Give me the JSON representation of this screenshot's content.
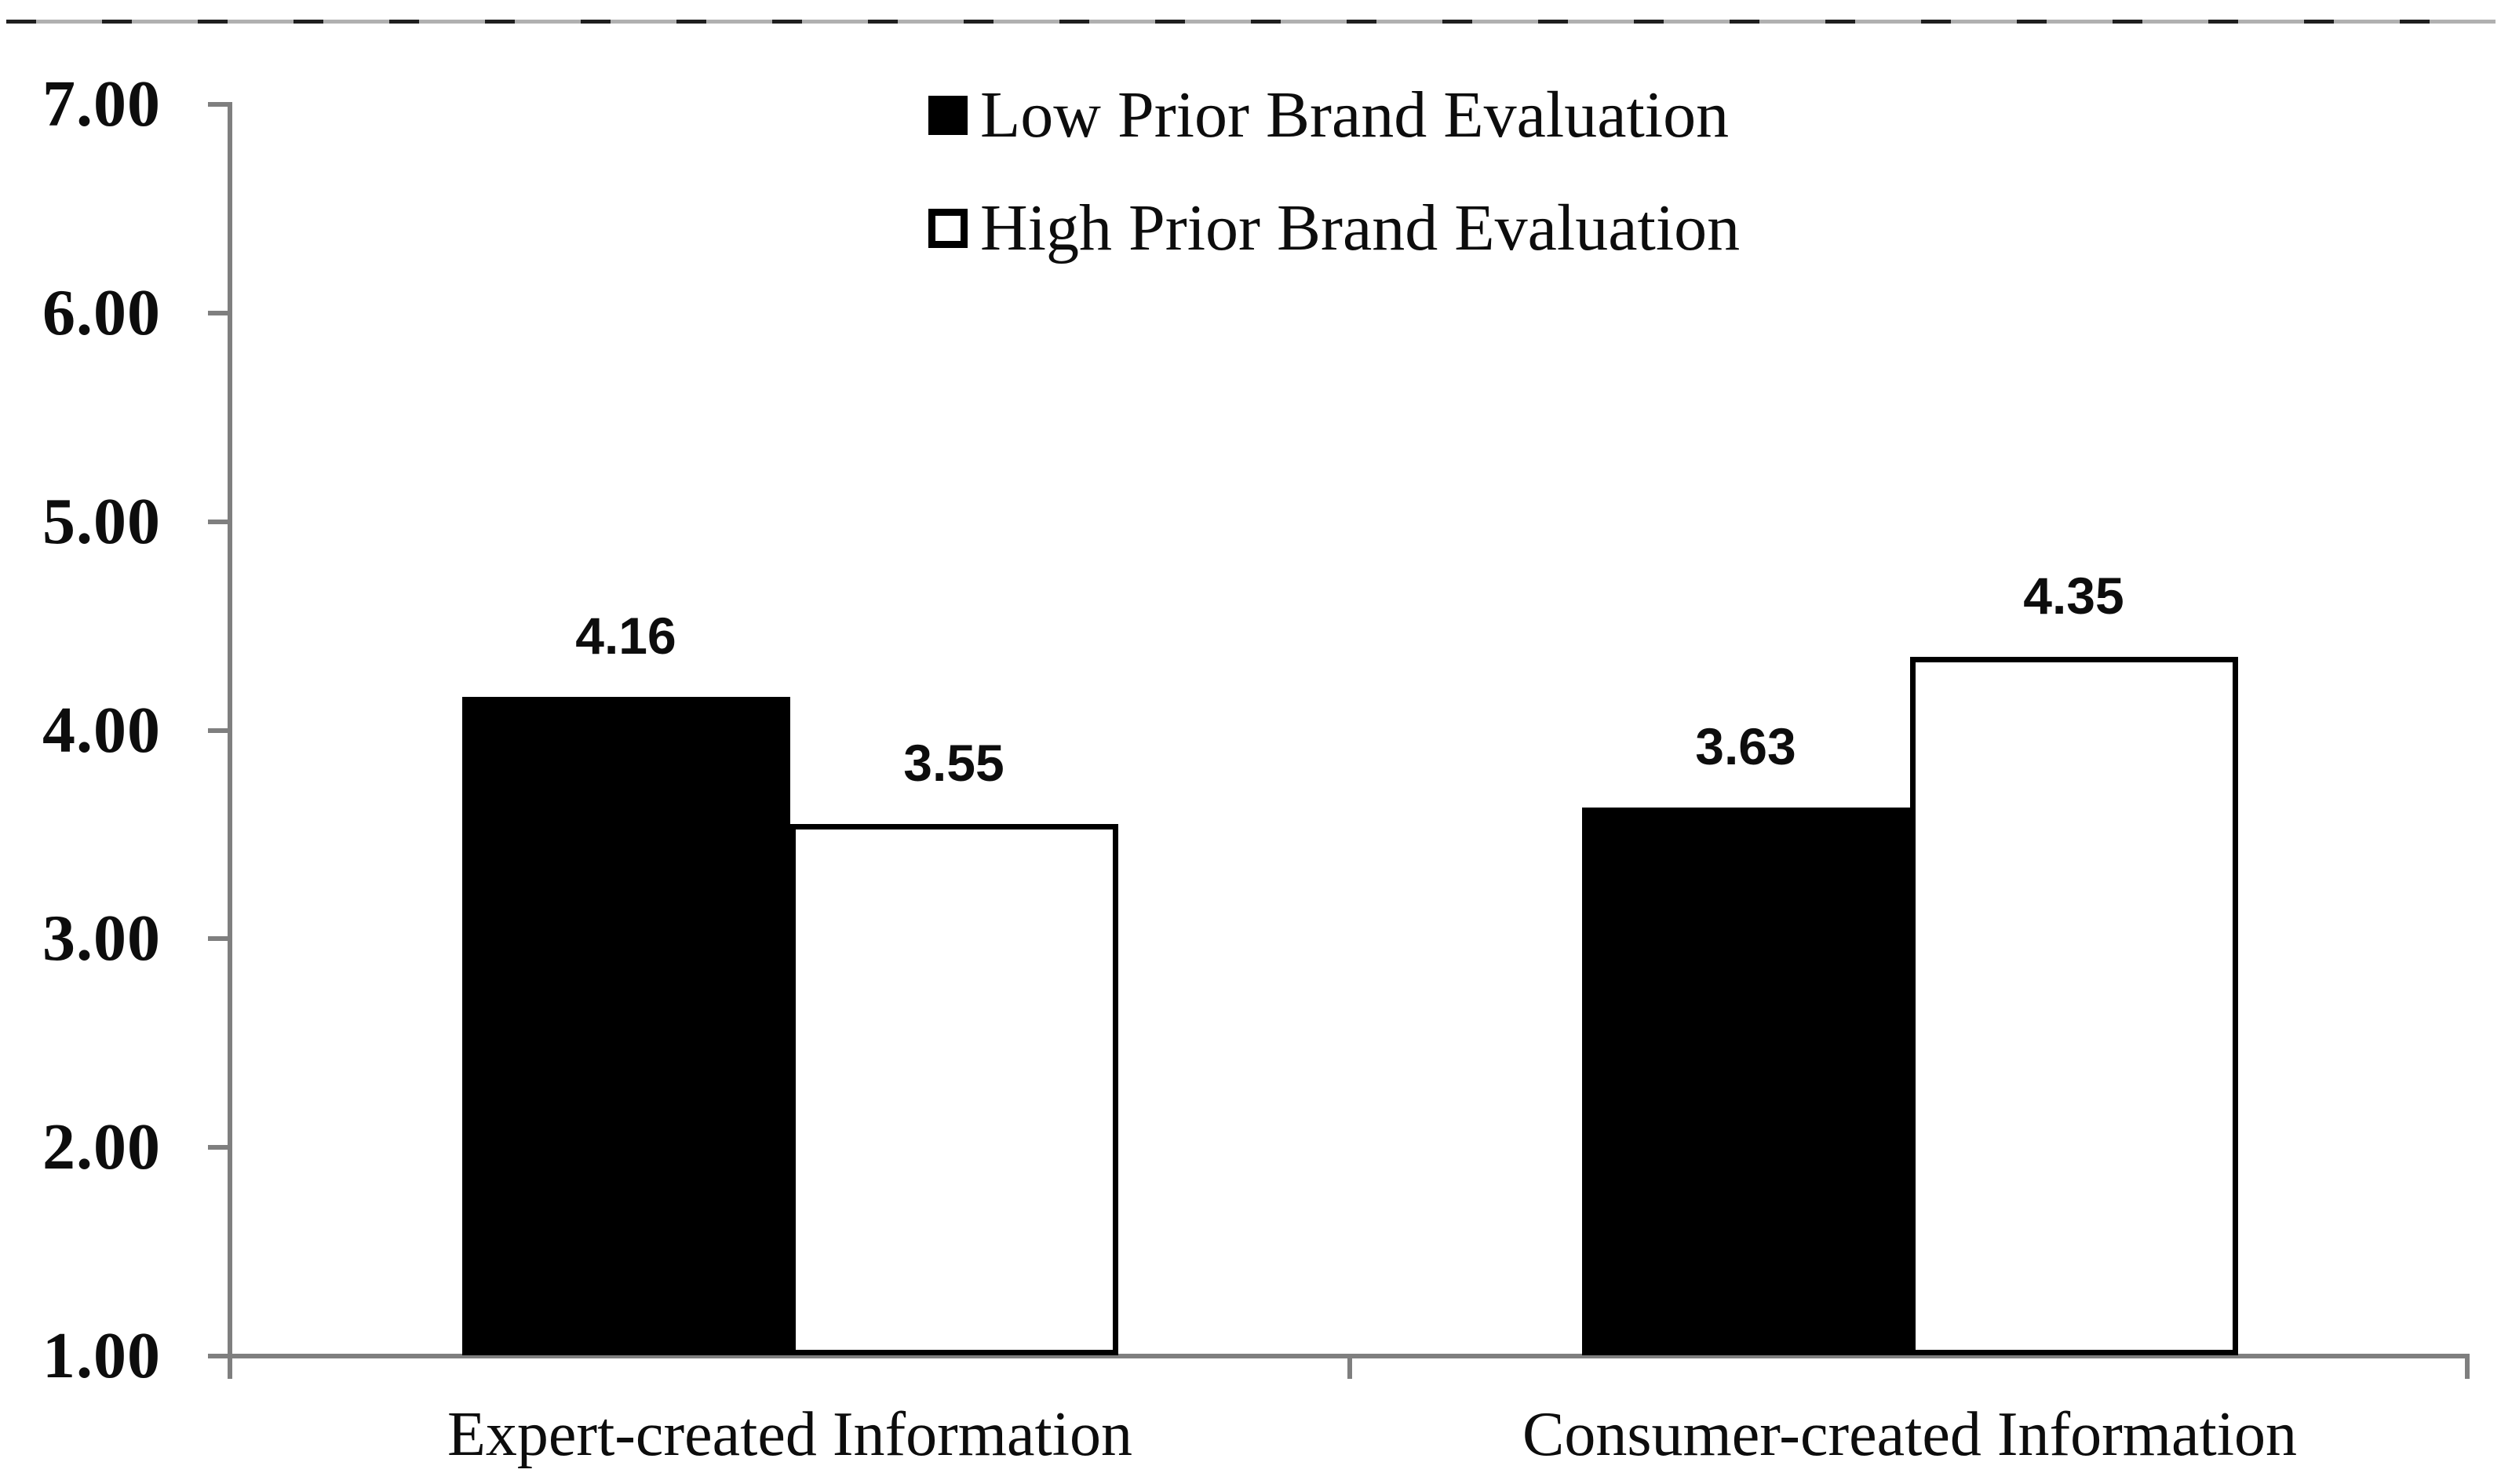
{
  "chart_data": {
    "type": "bar",
    "title": "",
    "xlabel": "",
    "ylabel": "",
    "categories": [
      "Expert-created Information",
      "Consumer-created Information"
    ],
    "series": [
      {
        "name": "Low Prior Brand Evaluation",
        "fill": "#000000",
        "outlined": false,
        "values": [
          4.16,
          3.63
        ]
      },
      {
        "name": "High Prior Brand Evaluation",
        "fill": "#ffffff",
        "outlined": true,
        "outline_color": "#000000",
        "values": [
          3.55,
          4.35
        ]
      }
    ],
    "data_labels": [
      [
        "4.16",
        "3.55"
      ],
      [
        "3.63",
        "4.35"
      ]
    ],
    "ylim": [
      1.0,
      7.0
    ],
    "ytick_step": 1.0,
    "ytick_labels": [
      "7.00",
      "6.00",
      "5.00",
      "4.00",
      "3.00",
      "2.00",
      "1.00"
    ],
    "grid": false,
    "legend_position": "top-center"
  },
  "colors": {
    "background": "#ffffff",
    "axis": "#7f7f7f",
    "text": "#0d0d0d",
    "bar_fill_low": "#000000",
    "bar_fill_high": "#ffffff",
    "bar_outline": "#000000"
  }
}
